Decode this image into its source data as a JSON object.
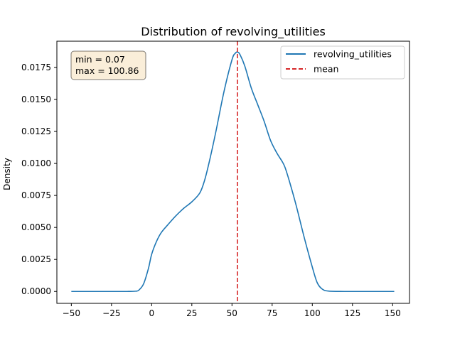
{
  "chart_data": {
    "type": "line",
    "title": "Distribution of revolving_utilities",
    "xlabel": "",
    "ylabel": "Density",
    "xlim": [
      -59,
      160.5
    ],
    "ylim": [
      -0.00093,
      0.01955
    ],
    "xticks": [
      -50,
      -25,
      0,
      25,
      50,
      75,
      100,
      125,
      150
    ],
    "xtick_labels": [
      "−50",
      "−25",
      "0",
      "25",
      "50",
      "75",
      "100",
      "125",
      "150"
    ],
    "yticks": [
      0,
      0.0025,
      0.005,
      0.0075,
      0.01,
      0.0125,
      0.015,
      0.0175
    ],
    "ytick_labels": [
      "0.0000",
      "0.0025",
      "0.0050",
      "0.0075",
      "0.0100",
      "0.0125",
      "0.0150",
      "0.0175"
    ],
    "grid": false,
    "legend_position": "upper right",
    "series": [
      {
        "name": "revolving_utilities",
        "color": "#1f77b4",
        "style": "solid",
        "x": [
          -50,
          -30,
          -15,
          -10,
          -8,
          -5,
          -2,
          0,
          3,
          6,
          10,
          15,
          20,
          25,
          30,
          33,
          36,
          40,
          45,
          50,
          52,
          53.5,
          55,
          58,
          62,
          66,
          70,
          74,
          78,
          81,
          83,
          86,
          90,
          95,
          100,
          103,
          106,
          110,
          120,
          135,
          151
        ],
        "y": [
          0,
          0,
          0,
          2e-05,
          0.0001,
          0.0006,
          0.0018,
          0.0029,
          0.0039,
          0.0046,
          0.0052,
          0.0059,
          0.0065,
          0.007,
          0.0077,
          0.0087,
          0.0102,
          0.0125,
          0.0156,
          0.0181,
          0.0186,
          0.0187,
          0.0185,
          0.0176,
          0.0159,
          0.0146,
          0.0133,
          0.0118,
          0.0108,
          0.0102,
          0.0097,
          0.0085,
          0.0067,
          0.0042,
          0.0019,
          0.0007,
          0.0002,
          3e-05,
          0,
          0,
          0
        ]
      },
      {
        "name": "mean",
        "color": "#d62728",
        "style": "dashed",
        "x_value": 53.4
      }
    ],
    "annotation": {
      "lines": [
        "min = 0.07",
        "max = 100.86"
      ],
      "position": "upper left",
      "background": "#f5deb3"
    }
  }
}
